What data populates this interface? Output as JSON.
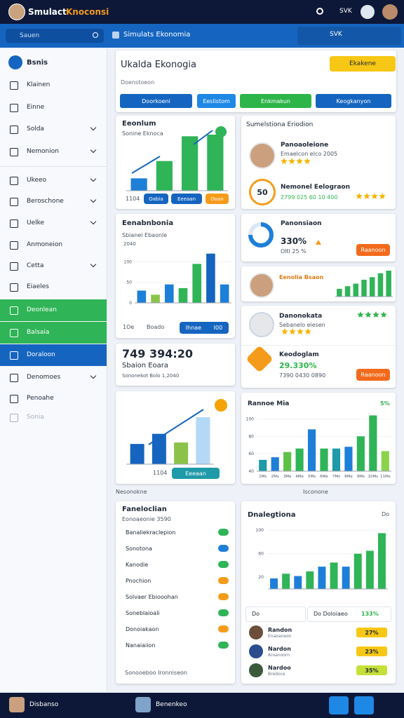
{
  "topbar": {
    "title_a": "Smulact",
    "title_b": "Knoconsi",
    "status": "SVK"
  },
  "searchbar": {
    "placeholder": "Sauen",
    "title": "Simulats Ekonomia"
  },
  "sidebar": {
    "header": "Bsnis",
    "items": [
      {
        "label": "Klainen"
      },
      {
        "label": "Einne"
      },
      {
        "label": "Solda",
        "chevron": true
      },
      {
        "label": "Nemonion",
        "chevron": true
      },
      {
        "label": "Ukeeo",
        "chevron": true
      },
      {
        "label": "Beroschone",
        "chevron": true
      },
      {
        "label": "Uelke",
        "chevron": true
      },
      {
        "label": "Anmoneion"
      },
      {
        "label": "Cetta",
        "chevron": true
      },
      {
        "label": "Eiaeles"
      },
      {
        "label": "Deonlean",
        "background": "#2fb457"
      },
      {
        "label": "Balsaia",
        "background": "#2fb457"
      },
      {
        "label": "Doraloon",
        "background": "#1565c0"
      },
      {
        "label": "Denomoes",
        "chevron": true
      },
      {
        "label": "Penoahe"
      },
      {
        "label": "Sonia",
        "color": "#a9b1be"
      }
    ]
  },
  "header": {
    "title": "Ukalda Ekonogia",
    "button": "Ekakene",
    "subtitle": "Doenstoeon",
    "tabs": [
      {
        "label": "Doorkoeni",
        "color": "#1565c0"
      },
      {
        "label": "Eeslistom",
        "color": "#1e88e5"
      },
      {
        "label": "Enkmakun",
        "color": "#2db54a"
      },
      {
        "label": "Keogkanyon",
        "color": "#1565c0"
      }
    ]
  },
  "growth_card": {
    "title": "Eeonlum",
    "subtitle": "Sonine Eknoca",
    "chart": {
      "values": [
        15,
        36,
        66,
        68
      ],
      "colors": [
        "#1e7fd8",
        "#2fb457",
        "#2fb457",
        "#2fb457"
      ]
    },
    "caption": "1104",
    "buttons": [
      {
        "label": "Oabia",
        "color": "#1565c0"
      },
      {
        "label": "Eeeaan",
        "color": "#1565c0"
      },
      {
        "label": "Ooan",
        "color": "#f59b1a"
      }
    ]
  },
  "people_card": {
    "title": "Sumelstiona Eriodion",
    "person": {
      "name": "Panoaoleione",
      "detail": "Emaelcon elco 2005"
    },
    "badge": {
      "icon_text": "50",
      "name": "Nemonel Eelograon",
      "detail": "2799 025 60 10 400"
    }
  },
  "analysis_card": {
    "title": "Eenabnbonia",
    "subtitle": "Sbianei Ebaonle",
    "note": "2040",
    "chart": {
      "values": [
        30,
        20,
        45,
        36,
        95,
        120,
        45
      ],
      "colors": [
        "#1e7fd8",
        "#8bc34a",
        "#1e7fd8",
        "#2fb457",
        "#2fb457",
        "#1565c0",
        "#1e7fd8"
      ],
      "ylim": [
        0,
        140
      ],
      "yticks": [
        0,
        50,
        100
      ]
    },
    "caption": "1Oe",
    "label": "Boado",
    "button": "Ihnae",
    "button_value": "I00"
  },
  "donut_card": {
    "title": "Panonsiaon",
    "value": "330%",
    "detail": "Oltl 25 %",
    "button": "Raanoon"
  },
  "trend_card": {
    "name": "Eenolia Bsaon",
    "chart": {
      "values": [
        12,
        16,
        20,
        26,
        30,
        36,
        40
      ],
      "colors": [
        "#2fb457",
        "#2fb457",
        "#2fb457",
        "#2fb457",
        "#2fb457",
        "#2fb457",
        "#2fb457"
      ]
    }
  },
  "rating_card": {
    "name": "Danonokata",
    "detail": "Sebanelo eiesen"
  },
  "award_card": {
    "name": "Keodoglam",
    "value": "29.330%",
    "detail": "7390 0430 0890",
    "button": "Raanoon"
  },
  "stat_card": {
    "value": "749 394:20",
    "label": "Sbaion Eoara",
    "detail": "Sononekot Bolo 1,2040"
  },
  "forecast_card": {
    "chart": {
      "values": [
        28,
        42,
        30,
        65
      ],
      "colors": [
        "#1565c0",
        "#1565c0",
        "#8bc34a",
        "#b3d9f7"
      ]
    },
    "caption": "1104",
    "button": "Eeeaan"
  },
  "market_card": {
    "title": "Rannoe Mia",
    "change": "5%",
    "chart": {
      "categories": [
        "1Ms",
        "2Ms",
        "3Me",
        "4Me",
        "5Ms",
        "6Me",
        "7Ms",
        "8Me",
        "9Ms",
        "10Ms",
        "11Ms"
      ],
      "values": [
        53,
        56,
        62,
        66,
        88,
        66,
        66,
        68,
        80,
        104,
        63
      ],
      "colors": [
        "#1e9aa8",
        "#1e7fd8",
        "#5cc247",
        "#2fb457",
        "#1e7fd8",
        "#2fb457",
        "#1e9aa8",
        "#1e7fd8",
        "#2fb457",
        "#2fb457",
        "#8bd34a"
      ],
      "ylim": [
        40,
        110
      ],
      "yticks": [
        40,
        60,
        80,
        100
      ]
    }
  },
  "sections": {
    "left": "Nesonokne",
    "right": "Isconone"
  },
  "list_card": {
    "title": "Faneloclian",
    "subtitle": "Eonoaeonie 3590",
    "items": [
      {
        "label": "Banaliekraclepion",
        "color": "#2fb457"
      },
      {
        "label": "Sonotona",
        "color": "#1e7fd8"
      },
      {
        "label": "Kanodie",
        "color": "#2fb457"
      },
      {
        "label": "Pnochion",
        "color": "#f59b1a"
      },
      {
        "label": "Solvaer Ebiooohan",
        "color": "#f59b1a"
      },
      {
        "label": "Soneblaioali",
        "color": "#2fb457"
      },
      {
        "label": "Donoiakaon",
        "color": "#f59b1a"
      },
      {
        "label": "Nanaiaiion",
        "color": "#2fb457"
      }
    ],
    "footer": "Sonooeboo Ironniseon"
  },
  "report_card": {
    "title": "Dnalegtiona",
    "corner": "Do",
    "chart": {
      "values": [
        18,
        26,
        22,
        30,
        38,
        45,
        38,
        60,
        65,
        95
      ],
      "colors": [
        "#1e7fd8",
        "#2fb457",
        "#1e7fd8",
        "#2fb457",
        "#1e7fd8",
        "#2fb457",
        "#1e7fd8",
        "#2fb457",
        "#2fb457",
        "#2fb457"
      ],
      "ylim": [
        0,
        105
      ],
      "yticks": [
        20,
        60,
        100
      ]
    },
    "filter": "Do",
    "select": "Do Doloiaeo",
    "select_value": "133%"
  },
  "ranking": [
    {
      "name": "Randon",
      "detail": "Enaoaneon",
      "value": "27%",
      "color": "#f7c715"
    },
    {
      "name": "Nardon",
      "detail": "Aroanoorn",
      "value": "23%",
      "color": "#f7c715"
    },
    {
      "name": "Nardoo",
      "detail": "Bredoce",
      "value": "35%",
      "color": "#c6e03a"
    }
  ],
  "bottombar": {
    "left": "Disbanso",
    "center": "Benenkeo"
  }
}
